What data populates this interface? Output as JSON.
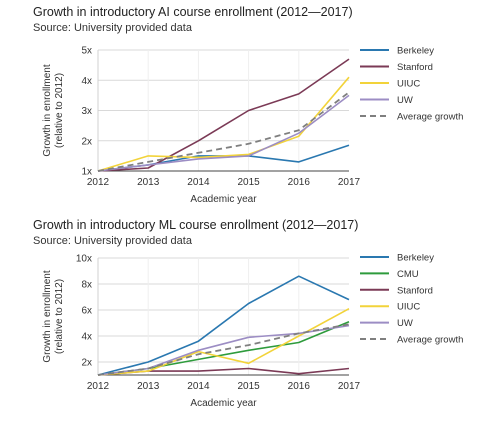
{
  "chart_data": [
    {
      "type": "line",
      "title": "Growth in introductory AI course enrollment (2012—2017)",
      "subtitle": "Source: University provided data",
      "xlabel": "Academic year",
      "ylabel": "Growth in enrollment (relative to 2012)",
      "x": [
        "2012",
        "2013",
        "2014",
        "2015",
        "2016",
        "2017"
      ],
      "ylim": [
        1,
        5
      ],
      "yticks": [
        1,
        2,
        3,
        4,
        5
      ],
      "ytick_labels": [
        "1x",
        "2x",
        "3x",
        "4x",
        "5x"
      ],
      "grid": true,
      "legend_position": "right",
      "series": [
        {
          "name": "Berkeley",
          "color": "#2a78b0",
          "dashed": false,
          "values": [
            1.0,
            1.2,
            1.5,
            1.5,
            1.3,
            1.85
          ]
        },
        {
          "name": "Stanford",
          "color": "#7b3a56",
          "dashed": false,
          "values": [
            1.0,
            1.1,
            2.0,
            3.0,
            3.55,
            4.7
          ]
        },
        {
          "name": "UIUC",
          "color": "#f2d33a",
          "dashed": false,
          "values": [
            1.0,
            1.5,
            1.45,
            1.55,
            2.15,
            4.1
          ]
        },
        {
          "name": "UW",
          "color": "#9c8dc4",
          "dashed": false,
          "values": [
            1.0,
            1.2,
            1.4,
            1.5,
            2.25,
            3.5
          ]
        },
        {
          "name": "Average growth",
          "color": "#7f7f7f",
          "dashed": true,
          "values": [
            1.0,
            1.3,
            1.6,
            1.9,
            2.35,
            3.6
          ]
        }
      ]
    },
    {
      "type": "line",
      "title": "Growth in introductory ML course enrollment (2012—2017)",
      "subtitle": "Source: University provided data",
      "xlabel": "Academic year",
      "ylabel": "Growth in enrollment (relative to 2012)",
      "x": [
        "2012",
        "2013",
        "2014",
        "2015",
        "2016",
        "2017"
      ],
      "ylim": [
        1,
        10
      ],
      "yticks": [
        2,
        4,
        6,
        8,
        10
      ],
      "ytick_labels": [
        "2x",
        "4x",
        "6x",
        "8x",
        "10x"
      ],
      "grid": true,
      "legend_position": "right",
      "series": [
        {
          "name": "Berkeley",
          "color": "#2a78b0",
          "dashed": false,
          "values": [
            1.0,
            2.0,
            3.6,
            6.5,
            8.6,
            6.8
          ]
        },
        {
          "name": "CMU",
          "color": "#2e9b3c",
          "dashed": false,
          "values": [
            1.0,
            1.5,
            2.2,
            2.9,
            3.5,
            5.1
          ]
        },
        {
          "name": "Stanford",
          "color": "#7b3a56",
          "dashed": false,
          "values": [
            1.0,
            1.3,
            1.3,
            1.5,
            1.1,
            1.5
          ]
        },
        {
          "name": "UIUC",
          "color": "#f2d33a",
          "dashed": false,
          "values": [
            1.0,
            1.3,
            2.8,
            1.9,
            4.0,
            6.1
          ]
        },
        {
          "name": "UW",
          "color": "#9c8dc4",
          "dashed": false,
          "values": [
            1.0,
            1.5,
            2.9,
            3.9,
            4.2,
            4.8
          ]
        },
        {
          "name": "Average growth",
          "color": "#7f7f7f",
          "dashed": true,
          "values": [
            1.0,
            1.5,
            2.6,
            3.3,
            4.2,
            4.9
          ]
        }
      ]
    }
  ]
}
